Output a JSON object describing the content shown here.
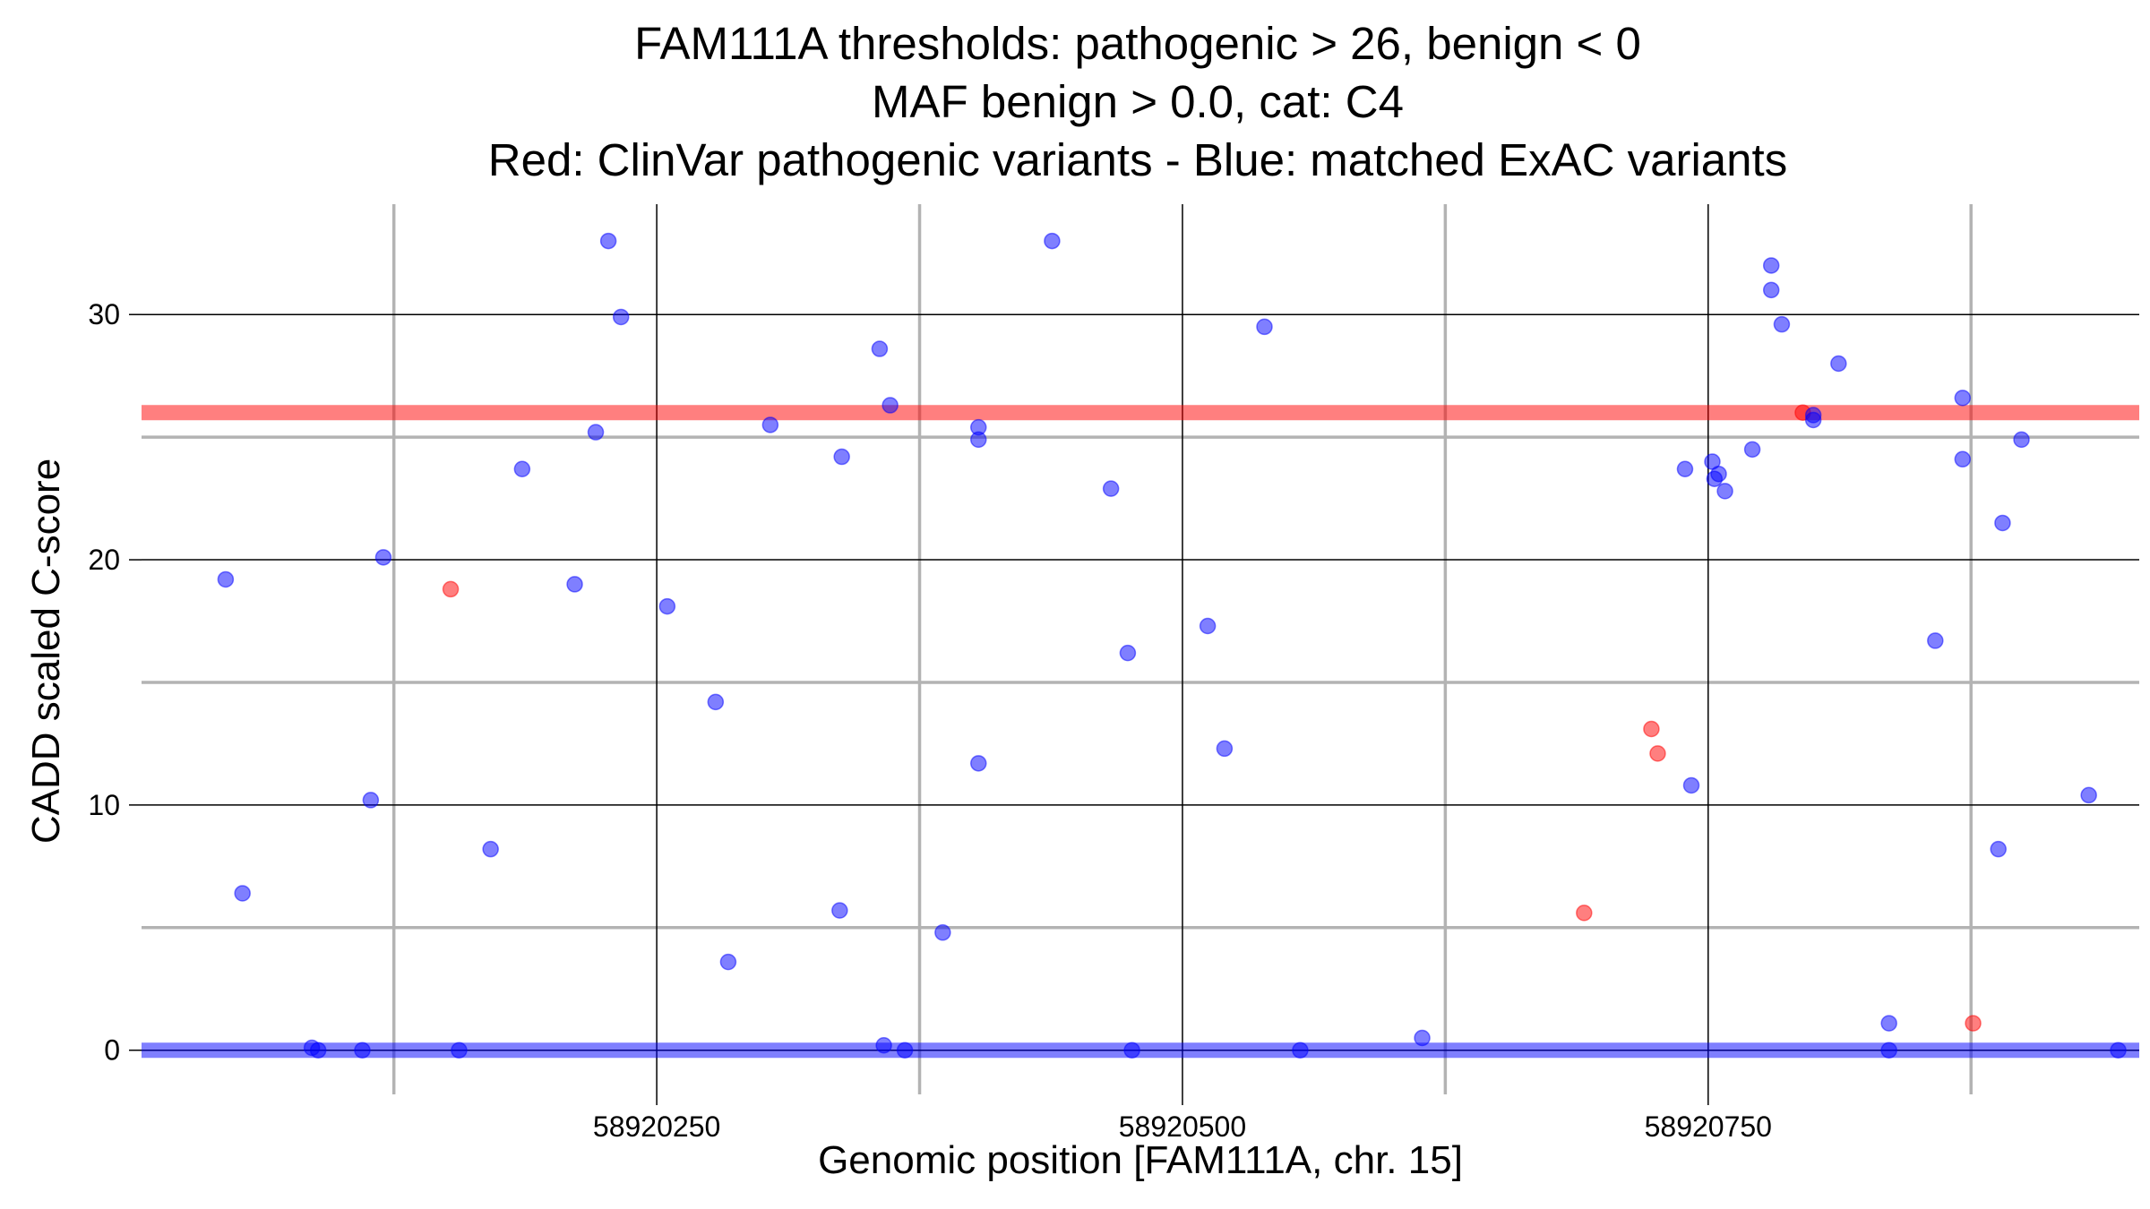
{
  "chart_data": {
    "type": "scatter",
    "title_lines": [
      "FAM111A thresholds: pathogenic > 26, benign < 0",
      "MAF benign > 0.0, cat: C4",
      "Red: ClinVar pathogenic variants - Blue: matched ExAC variants"
    ],
    "xlabel": "Genomic position [FAM111A, chr. 15]",
    "ylabel": "CADD scaled C-score",
    "xlim": [
      58920005,
      58920955
    ],
    "ylim": [
      -1.8,
      34.5
    ],
    "x_ticks": [
      58920250,
      58920500,
      58920750
    ],
    "x_tick_labels": [
      "58920250",
      "58920500",
      "58920750"
    ],
    "x_minor_ticks": [
      58920125,
      58920375,
      58920625,
      58920875
    ],
    "y_ticks": [
      0,
      10,
      20,
      30
    ],
    "y_tick_labels": [
      "0",
      "10",
      "20",
      "30"
    ],
    "y_minor_ticks": [
      5,
      15,
      25
    ],
    "grid": true,
    "legend": "none",
    "colors": {
      "pathogenic": "#ff0000",
      "benign": "#0000ff",
      "major_grid": "#000000",
      "minor_grid": "#b3b3b3"
    },
    "thresholds": [
      {
        "name": "pathogenic",
        "y": 26,
        "color": "#ff0000"
      },
      {
        "name": "benign",
        "y": 0,
        "color": "#0000ff"
      }
    ],
    "series": [
      {
        "color": "#ff0000",
        "points": [
          [
            58920152,
            18.8
          ],
          [
            58920691,
            5.6
          ],
          [
            58920723,
            13.1
          ],
          [
            58920726,
            12.1
          ],
          [
            58920795,
            26.0
          ],
          [
            58920876,
            1.1
          ]
        ]
      },
      {
        "color": "#0000ff",
        "points": [
          [
            58920045,
            19.2
          ],
          [
            58920053,
            6.4
          ],
          [
            58920086,
            0.1
          ],
          [
            58920089,
            0.0
          ],
          [
            58920110,
            0.0
          ],
          [
            58920114,
            10.2
          ],
          [
            58920120,
            20.1
          ],
          [
            58920156,
            0.0
          ],
          [
            58920171,
            8.2
          ],
          [
            58920186,
            23.7
          ],
          [
            58920211,
            19.0
          ],
          [
            58920221,
            25.2
          ],
          [
            58920227,
            33.0
          ],
          [
            58920233,
            29.9
          ],
          [
            58920255,
            18.1
          ],
          [
            58920278,
            14.2
          ],
          [
            58920284,
            3.6
          ],
          [
            58920304,
            25.5
          ],
          [
            58920337,
            5.7
          ],
          [
            58920338,
            24.2
          ],
          [
            58920356,
            28.6
          ],
          [
            58920358,
            0.2
          ],
          [
            58920361,
            26.3
          ],
          [
            58920368,
            0.0
          ],
          [
            58920386,
            4.8
          ],
          [
            58920403,
            25.4
          ],
          [
            58920403,
            24.9
          ],
          [
            58920403,
            11.7
          ],
          [
            58920438,
            33.0
          ],
          [
            58920466,
            22.9
          ],
          [
            58920474,
            16.2
          ],
          [
            58920476,
            0.0
          ],
          [
            58920512,
            17.3
          ],
          [
            58920520,
            12.3
          ],
          [
            58920539,
            29.5
          ],
          [
            58920556,
            0.0
          ],
          [
            58920614,
            0.5
          ],
          [
            58920739,
            23.7
          ],
          [
            58920742,
            10.8
          ],
          [
            58920752,
            24.0
          ],
          [
            58920753,
            23.3
          ],
          [
            58920755,
            23.5
          ],
          [
            58920758,
            22.8
          ],
          [
            58920771,
            24.5
          ],
          [
            58920780,
            32.0
          ],
          [
            58920780,
            31.0
          ],
          [
            58920785,
            29.6
          ],
          [
            58920800,
            25.9
          ],
          [
            58920800,
            25.7
          ],
          [
            58920812,
            28.0
          ],
          [
            58920836,
            0.0
          ],
          [
            58920836,
            1.1
          ],
          [
            58920858,
            16.7
          ],
          [
            58920871,
            26.6
          ],
          [
            58920871,
            24.1
          ],
          [
            58920888,
            8.2
          ],
          [
            58920890,
            21.5
          ],
          [
            58920899,
            24.9
          ],
          [
            58920931,
            10.4
          ],
          [
            58920945,
            0.0
          ]
        ]
      }
    ]
  }
}
